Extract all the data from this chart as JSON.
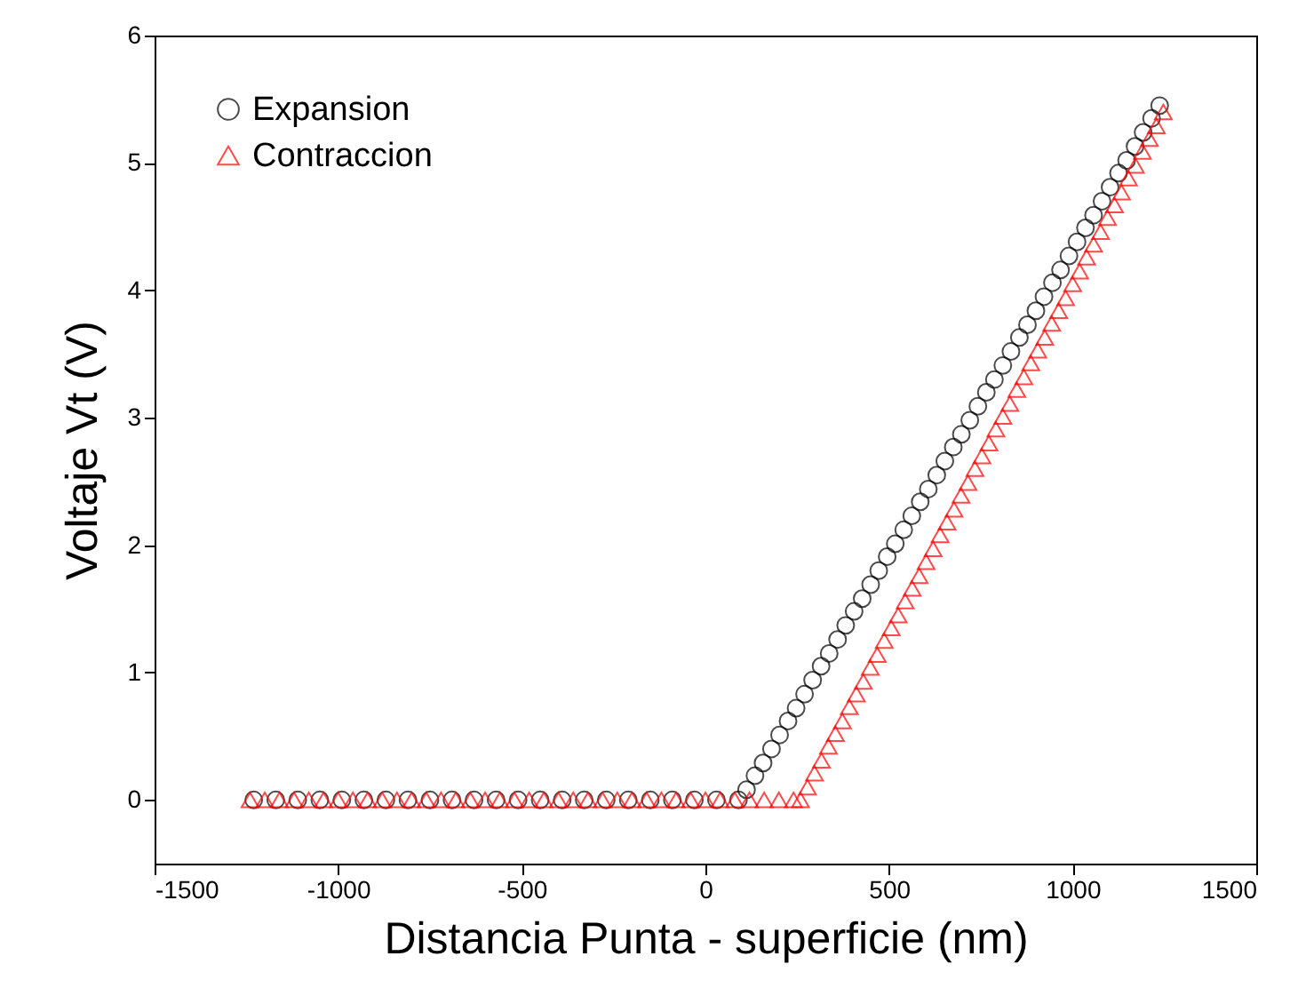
{
  "chart_data": {
    "type": "scatter",
    "xlabel": "Distancia Punta - superficie (nm)",
    "ylabel": "Voltaje Vt (V)",
    "xlim": [
      -1500,
      1500
    ],
    "xticks": [
      -1500,
      -1000,
      -500,
      0,
      500,
      1000,
      1500
    ],
    "ylim": [
      -0.5,
      6
    ],
    "yticks": [
      0,
      1,
      2,
      3,
      4,
      5,
      6
    ],
    "grid": false,
    "legend": "top left",
    "series": [
      {
        "name": "Expansion",
        "color": "#000000",
        "marker": "circle",
        "x": [
          -1230,
          -1170,
          -1110,
          -1050,
          -990,
          -930,
          -870,
          -810,
          -750,
          -690,
          -630,
          -570,
          -510,
          -450,
          -390,
          -330,
          -270,
          -210,
          -150,
          -90,
          -30,
          30,
          90,
          112,
          135,
          157,
          180,
          202,
          225,
          247,
          270,
          292,
          315,
          337,
          360,
          382,
          405,
          427,
          450,
          472,
          495,
          517,
          540,
          562,
          585,
          607,
          630,
          652,
          675,
          697,
          720,
          742,
          765,
          787,
          810,
          832,
          855,
          877,
          900,
          922,
          945,
          967,
          990,
          1012,
          1035,
          1057,
          1080,
          1102,
          1125,
          1147,
          1170,
          1192,
          1215,
          1237
        ],
        "values": [
          0,
          0,
          0,
          0,
          0,
          0,
          0,
          0,
          0,
          0,
          0,
          0,
          0,
          0,
          0,
          0,
          0,
          0,
          0,
          0,
          0,
          0,
          0,
          0.08,
          0.19,
          0.29,
          0.4,
          0.51,
          0.62,
          0.72,
          0.83,
          0.94,
          1.05,
          1.15,
          1.26,
          1.37,
          1.48,
          1.58,
          1.69,
          1.8,
          1.91,
          2.01,
          2.12,
          2.23,
          2.34,
          2.44,
          2.55,
          2.66,
          2.77,
          2.87,
          2.98,
          3.09,
          3.2,
          3.3,
          3.41,
          3.52,
          3.63,
          3.73,
          3.84,
          3.95,
          4.06,
          4.16,
          4.27,
          4.38,
          4.49,
          4.59,
          4.7,
          4.81,
          4.92,
          5.02,
          5.13,
          5.24,
          5.35,
          5.45
        ]
      },
      {
        "name": "Contraccion",
        "color": "#ff0000",
        "marker": "triangle",
        "x": [
          -1240,
          -1200,
          -1160,
          -1120,
          -1080,
          -1040,
          -1000,
          -960,
          -920,
          -880,
          -840,
          -800,
          -760,
          -720,
          -680,
          -640,
          -600,
          -560,
          -520,
          -480,
          -440,
          -400,
          -360,
          -320,
          -280,
          -240,
          -200,
          -160,
          -120,
          -80,
          -40,
          0,
          40,
          80,
          120,
          160,
          200,
          240,
          259,
          278,
          297,
          316,
          335,
          354,
          373,
          392,
          411,
          430,
          449,
          468,
          487,
          506,
          525,
          544,
          563,
          582,
          601,
          620,
          639,
          658,
          677,
          696,
          715,
          734,
          753,
          772,
          791,
          810,
          829,
          848,
          867,
          886,
          905,
          924,
          943,
          962,
          981,
          1000,
          1019,
          1038,
          1057,
          1076,
          1095,
          1114,
          1133,
          1152,
          1171,
          1190,
          1209,
          1228,
          1247
        ],
        "values": [
          0,
          0,
          0,
          0,
          0,
          0,
          0,
          0,
          0,
          0,
          0,
          0,
          0,
          0,
          0,
          0,
          0,
          0,
          0,
          0,
          0,
          0,
          0,
          0,
          0,
          0,
          0,
          0,
          0,
          0,
          0,
          0,
          0,
          0,
          0,
          0,
          0,
          0,
          0.0,
          0.1,
          0.21,
          0.31,
          0.42,
          0.52,
          0.62,
          0.73,
          0.83,
          0.93,
          1.04,
          1.14,
          1.25,
          1.35,
          1.45,
          1.56,
          1.66,
          1.76,
          1.87,
          1.97,
          2.08,
          2.18,
          2.28,
          2.39,
          2.49,
          2.6,
          2.7,
          2.8,
          2.91,
          3.01,
          3.11,
          3.22,
          3.32,
          3.43,
          3.53,
          3.63,
          3.74,
          3.84,
          3.94,
          4.05,
          4.15,
          4.26,
          4.36,
          4.46,
          4.57,
          4.67,
          4.77,
          4.88,
          4.98,
          5.09,
          5.19,
          5.29,
          5.4
        ]
      }
    ]
  }
}
